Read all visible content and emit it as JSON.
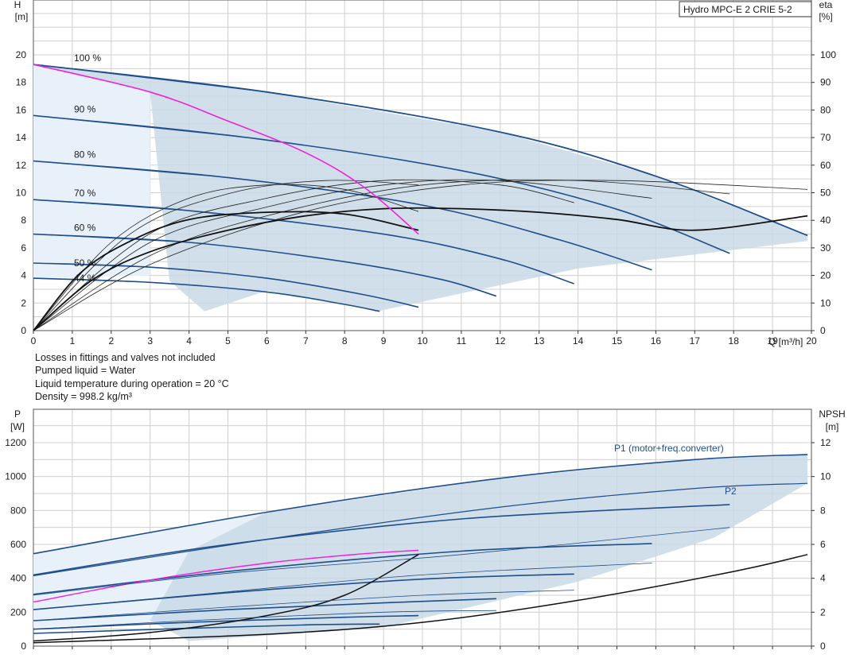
{
  "chart_data": [
    {
      "type": "line",
      "title": "Hydro MPC-E 2 CRIE 5-2",
      "xlabel": "Q [m³/h]",
      "ylabel": "H",
      "ylabel_unit": "[m]",
      "y2label": "eta",
      "y2label_unit": "[%]",
      "xlim": [
        0,
        20
      ],
      "ylim": [
        0,
        20
      ],
      "y2lim": [
        0,
        100
      ],
      "x_ticks": [
        "0",
        "1",
        "2",
        "3",
        "4",
        "5",
        "6",
        "7",
        "8",
        "9",
        "10",
        "11",
        "12",
        "13",
        "14",
        "15",
        "16",
        "17",
        "18",
        "19",
        "20"
      ],
      "y_ticks": [
        "0",
        "2",
        "4",
        "6",
        "8",
        "10",
        "12",
        "14",
        "16",
        "18",
        "20"
      ],
      "y2_ticks": [
        "0",
        "10",
        "20",
        "30",
        "40",
        "50",
        "60",
        "70",
        "80",
        "90",
        "100"
      ],
      "grid": true,
      "speed_labels": [
        {
          "text": "100 %",
          "h": 19.3
        },
        {
          "text": "90 %",
          "h": 15.6
        },
        {
          "text": "80 %",
          "h": 12.3
        },
        {
          "text": "70 %",
          "h": 9.5
        },
        {
          "text": "60 %",
          "h": 7.0
        },
        {
          "text": "50 %",
          "h": 4.9
        },
        {
          "text": "44 %",
          "h": 3.8
        }
      ],
      "series": [
        {
          "role": "head-2pump",
          "pct": 100,
          "points": [
            [
              0,
              19.3
            ],
            [
              6,
              17.3
            ],
            [
              12,
              14.4
            ],
            [
              16,
              11.2
            ],
            [
              19.9,
              6.9
            ]
          ]
        },
        {
          "role": "head-2pump",
          "pct": 90,
          "points": [
            [
              0,
              15.6
            ],
            [
              5.5,
              14.0
            ],
            [
              11,
              11.6
            ],
            [
              15,
              8.8
            ],
            [
              17.9,
              5.6
            ]
          ]
        },
        {
          "role": "head-2pump",
          "pct": 80,
          "points": [
            [
              0,
              12.3
            ],
            [
              5,
              11.1
            ],
            [
              10,
              9.1
            ],
            [
              13.5,
              6.6
            ],
            [
              15.9,
              4.4
            ]
          ]
        },
        {
          "role": "head-2pump",
          "pct": 70,
          "points": [
            [
              0,
              9.5
            ],
            [
              4,
              8.7
            ],
            [
              9,
              7.0
            ],
            [
              12,
              5.2
            ],
            [
              13.9,
              3.4
            ]
          ]
        },
        {
          "role": "head-2pump",
          "pct": 60,
          "points": [
            [
              0,
              7.0
            ],
            [
              4,
              6.4
            ],
            [
              8,
              5.0
            ],
            [
              10.5,
              3.7
            ],
            [
              11.9,
              2.5
            ]
          ]
        },
        {
          "role": "head-2pump",
          "pct": 50,
          "points": [
            [
              0,
              4.9
            ],
            [
              3,
              4.6
            ],
            [
              6,
              3.8
            ],
            [
              8.5,
              2.6
            ],
            [
              9.9,
              1.7
            ]
          ]
        },
        {
          "role": "head-2pump",
          "pct": 44,
          "points": [
            [
              0,
              3.8
            ],
            [
              3,
              3.5
            ],
            [
              6,
              2.8
            ],
            [
              8,
              1.9
            ],
            [
              8.9,
              1.4
            ]
          ]
        },
        {
          "role": "setpoint",
          "points": [
            [
              0,
              19.3
            ],
            [
              3,
              17.3
            ],
            [
              5,
              15.2
            ],
            [
              7,
              12.9
            ],
            [
              8.5,
              10.4
            ],
            [
              9.9,
              7.0
            ]
          ]
        },
        {
          "role": "eta",
          "points": [
            [
              0,
              0
            ],
            [
              1.5,
              14
            ],
            [
              3,
              22
            ],
            [
              5,
              28
            ],
            [
              7,
              32
            ],
            [
              9,
              34
            ],
            [
              11,
              34
            ],
            [
              13,
              33
            ],
            [
              15,
              31
            ],
            [
              17,
              28
            ],
            [
              19.9,
              32
            ]
          ]
        },
        {
          "role": "eta",
          "points": [
            [
              0,
              0
            ],
            [
              1.2,
              16
            ],
            [
              2.5,
              25
            ],
            [
              4,
              31
            ],
            [
              6,
              33
            ],
            [
              8,
              32.5
            ],
            [
              9.9,
              28
            ]
          ]
        }
      ]
    },
    {
      "type": "line",
      "ylabel": "P",
      "ylabel_unit": "[W]",
      "y2label": "NPSH",
      "y2label_unit": "[m]",
      "xlim": [
        0,
        20
      ],
      "ylim": [
        0,
        1300
      ],
      "y2lim": [
        0,
        13
      ],
      "y_ticks": [
        "0",
        "200",
        "400",
        "600",
        "800",
        "1000",
        "1200"
      ],
      "y2_ticks": [
        "0",
        "2",
        "4",
        "6",
        "8",
        "10",
        "12"
      ],
      "grid": true,
      "series_labels": {
        "p1": "P1 (motor+freq.converter)",
        "p2": "P2"
      },
      "series": [
        {
          "name": "P1 (motor+freq.converter)",
          "points": [
            [
              0,
              545
            ],
            [
              6,
              790
            ],
            [
              12,
              990
            ],
            [
              17,
              1100
            ],
            [
              19.9,
              1130
            ]
          ]
        },
        {
          "name": "P2",
          "points": [
            [
              0,
              415
            ],
            [
              6,
              630
            ],
            [
              12,
              820
            ],
            [
              17,
              930
            ],
            [
              19.9,
              960
            ]
          ]
        },
        {
          "role": "p1-90",
          "points": [
            [
              0,
              420
            ],
            [
              5,
              600
            ],
            [
              11,
              750
            ],
            [
              17.9,
              835
            ]
          ]
        },
        {
          "role": "p1-80",
          "points": [
            [
              0,
              305
            ],
            [
              5,
              440
            ],
            [
              11,
              560
            ],
            [
              15.9,
              605
            ]
          ]
        },
        {
          "role": "p1-70",
          "points": [
            [
              0,
              215
            ],
            [
              5,
              315
            ],
            [
              10,
              395
            ],
            [
              13.9,
              425
            ]
          ]
        },
        {
          "role": "p1-60",
          "points": [
            [
              0,
              150
            ],
            [
              5,
              215
            ],
            [
              9,
              255
            ],
            [
              11.9,
              280
            ]
          ]
        },
        {
          "role": "p1-50",
          "points": [
            [
              0,
              100
            ],
            [
              4,
              140
            ],
            [
              8,
              170
            ],
            [
              9.9,
              180
            ]
          ]
        },
        {
          "role": "p1-44",
          "points": [
            [
              0,
              75
            ],
            [
              4,
              105
            ],
            [
              7,
              125
            ],
            [
              8.9,
              130
            ]
          ]
        },
        {
          "role": "npsh",
          "points": [
            [
              0,
              0.2
            ],
            [
              6,
              0.7
            ],
            [
              10,
              1.4
            ],
            [
              14,
              2.7
            ],
            [
              18,
              4.4
            ],
            [
              19.9,
              5.4
            ]
          ]
        },
        {
          "role": "npsh-1pump",
          "points": [
            [
              0,
              0.3
            ],
            [
              3,
              0.8
            ],
            [
              6,
              1.8
            ],
            [
              8,
              3.0
            ],
            [
              9.9,
              5.4
            ]
          ]
        },
        {
          "role": "setpoint-power",
          "points": [
            [
              0,
              260
            ],
            [
              3,
              390
            ],
            [
              6,
              490
            ],
            [
              8.5,
              545
            ],
            [
              9.9,
              565
            ]
          ]
        }
      ]
    }
  ],
  "notes": [
    "Losses in fittings and valves not included",
    "Pumped liquid = Water",
    "Liquid temperature during operation = 20 °C",
    "Density = 998.2 kg/m³"
  ],
  "colors": {
    "head": "#1f4e8c",
    "setpoint": "#ee22dd",
    "eta": "#111111",
    "area": "#c9d9e6",
    "area_light": "#e8f1fa",
    "grid": "#cfcfcf"
  }
}
